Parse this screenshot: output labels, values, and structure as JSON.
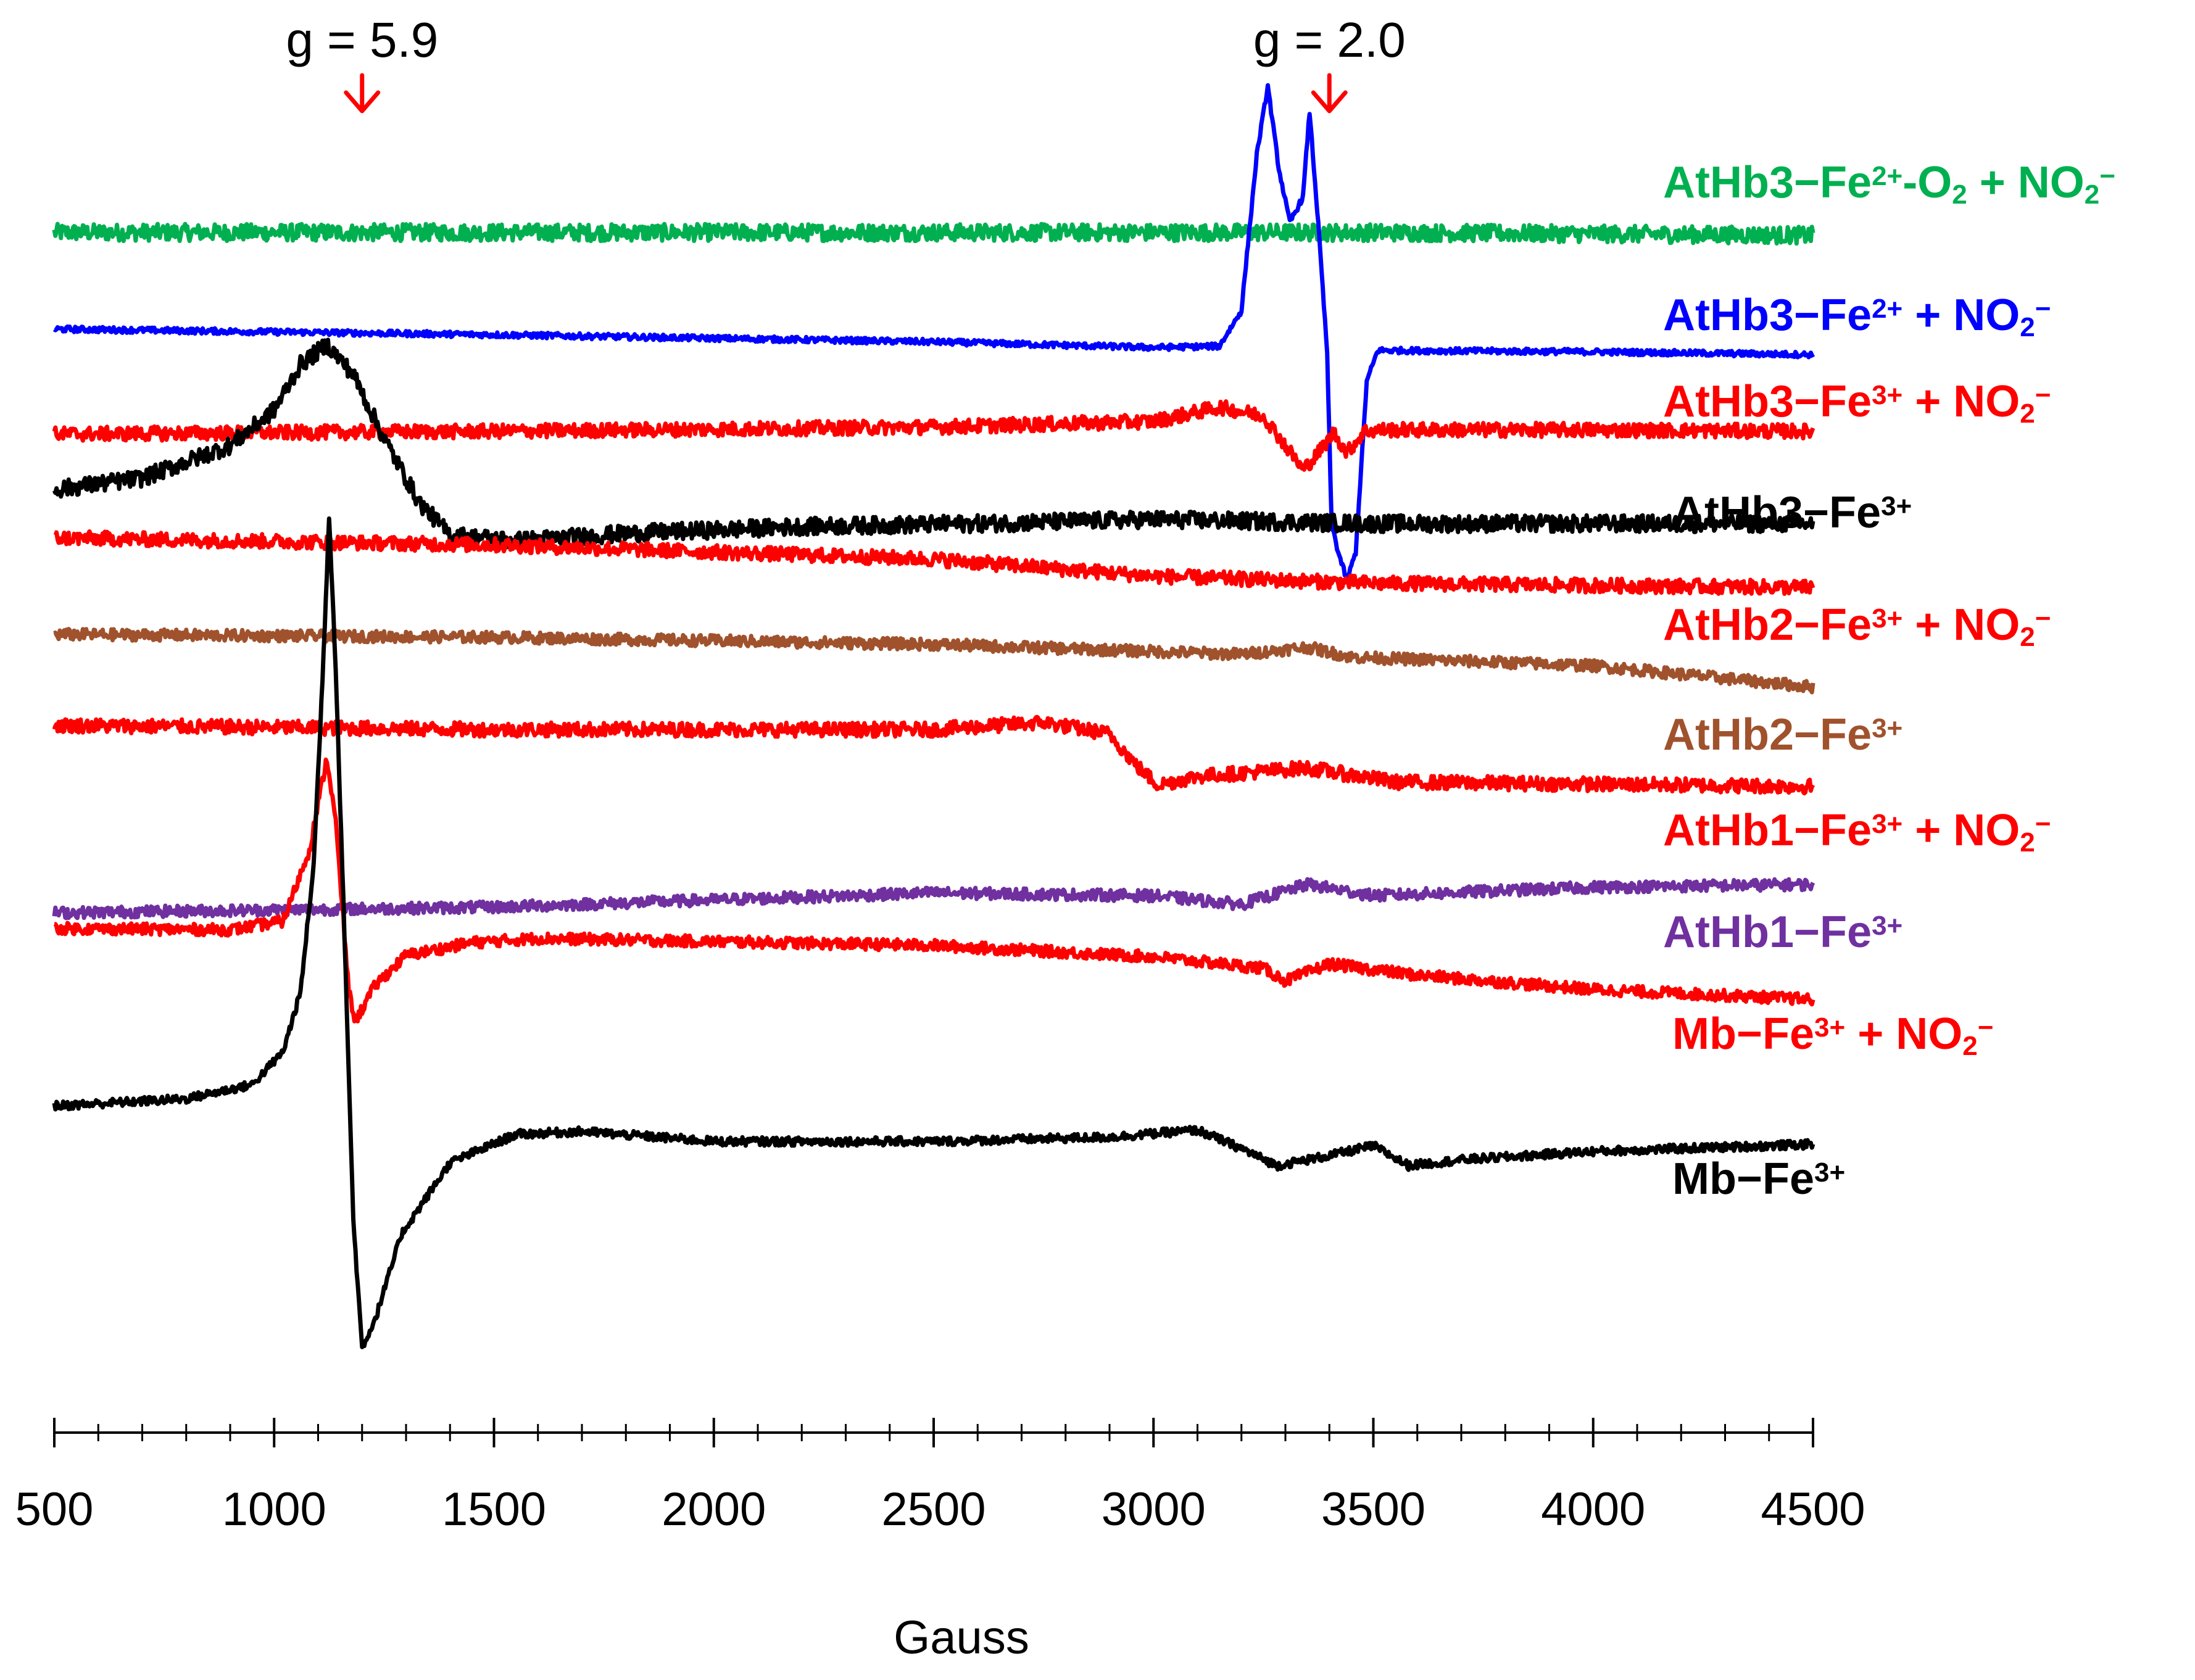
{
  "chart_data": {
    "type": "line",
    "title": "",
    "xlabel": "Gauss",
    "ylabel": "",
    "xlim": [
      500,
      4500
    ],
    "x_ticks": [
      "500",
      "1000",
      "1500",
      "2000",
      "2500",
      "3000",
      "3500",
      "4000",
      "4500"
    ],
    "x_tick_values": [
      500,
      1000,
      1500,
      2000,
      2500,
      3000,
      3500,
      4000,
      4500
    ],
    "grid": false,
    "annotations": [
      {
        "id": "g59",
        "text": "g = 5.9",
        "x": 1200,
        "arrow_color": "#ff0000"
      },
      {
        "id": "g20",
        "text": "g = 2.0",
        "x": 3400,
        "arrow_color": "#ff0000"
      }
    ],
    "series": [
      {
        "id": "s1",
        "name": "AtHb3−Fe²⁺-O₂ + NO₂⁻",
        "label_parts": [
          [
            "AtHb3−Fe",
            "n"
          ],
          [
            "2+",
            "sup"
          ],
          [
            "-O",
            "n"
          ],
          [
            "2",
            "sub"
          ],
          [
            " + NO",
            "n"
          ],
          [
            "2",
            "sub"
          ],
          [
            "−",
            "sup"
          ]
        ],
        "color": "#00b050",
        "noise": 0.006,
        "points": [
          [
            500,
            0.845
          ],
          [
            1500,
            0.845
          ],
          [
            2500,
            0.845
          ],
          [
            3500,
            0.845
          ],
          [
            4500,
            0.843
          ]
        ]
      },
      {
        "id": "s2",
        "name": "AtHb3−Fe²⁺ + NO₂⁻",
        "label_parts": [
          [
            "AtHb3−Fe",
            "n"
          ],
          [
            "2+",
            "sup"
          ],
          [
            " + NO",
            "n"
          ],
          [
            "2",
            "sub"
          ],
          [
            "−",
            "sup"
          ]
        ],
        "color": "#0000ff",
        "noise": 0.002,
        "points": [
          [
            500,
            0.777
          ],
          [
            1500,
            0.773
          ],
          [
            2500,
            0.768
          ],
          [
            3000,
            0.764
          ],
          [
            3150,
            0.765
          ],
          [
            3200,
            0.79
          ],
          [
            3235,
            0.9
          ],
          [
            3260,
            0.948
          ],
          [
            3285,
            0.89
          ],
          [
            3310,
            0.852
          ],
          [
            3340,
            0.87
          ],
          [
            3355,
            0.93
          ],
          [
            3375,
            0.85
          ],
          [
            3395,
            0.76
          ],
          [
            3405,
            0.64
          ],
          [
            3420,
            0.62
          ],
          [
            3440,
            0.6
          ],
          [
            3460,
            0.62
          ],
          [
            3485,
            0.74
          ],
          [
            3510,
            0.762
          ],
          [
            4000,
            0.761
          ],
          [
            4500,
            0.759
          ]
        ]
      },
      {
        "id": "s3",
        "name": "AtHb3−Fe³⁺ + NO₂⁻",
        "label_parts": [
          [
            "AtHb3−Fe",
            "n"
          ],
          [
            "3+",
            "sup"
          ],
          [
            " + NO",
            "n"
          ],
          [
            "2",
            "sub"
          ],
          [
            "−",
            "sup"
          ]
        ],
        "color": "#ff0000",
        "noise": 0.005,
        "points": [
          [
            500,
            0.703
          ],
          [
            1500,
            0.705
          ],
          [
            2500,
            0.708
          ],
          [
            3000,
            0.712
          ],
          [
            3150,
            0.722
          ],
          [
            3250,
            0.716
          ],
          [
            3300,
            0.695
          ],
          [
            3340,
            0.678
          ],
          [
            3370,
            0.688
          ],
          [
            3410,
            0.704
          ],
          [
            3440,
            0.69
          ],
          [
            3480,
            0.705
          ],
          [
            3520,
            0.706
          ],
          [
            4000,
            0.706
          ],
          [
            4500,
            0.705
          ]
        ]
      },
      {
        "id": "s4",
        "name": "AtHb3−Fe³⁺",
        "label_parts": [
          [
            "AtHb3−Fe",
            "n"
          ],
          [
            "3+",
            "sup"
          ]
        ],
        "color": "#000000",
        "noise": 0.006,
        "points": [
          [
            500,
            0.664
          ],
          [
            700,
            0.672
          ],
          [
            900,
            0.695
          ],
          [
            1000,
            0.72
          ],
          [
            1060,
            0.752
          ],
          [
            1120,
            0.766
          ],
          [
            1180,
            0.745
          ],
          [
            1250,
            0.7
          ],
          [
            1330,
            0.655
          ],
          [
            1400,
            0.632
          ],
          [
            1550,
            0.628
          ],
          [
            1800,
            0.633
          ],
          [
            2200,
            0.638
          ],
          [
            2600,
            0.64
          ],
          [
            3000,
            0.643
          ],
          [
            3500,
            0.64
          ],
          [
            4000,
            0.64
          ],
          [
            4500,
            0.64
          ]
        ]
      },
      {
        "id": "s5",
        "name": "AtHb2−Fe³⁺ + NO₂⁻",
        "label_parts": [
          [
            "AtHb2−Fe",
            "n"
          ],
          [
            "3+",
            "sup"
          ],
          [
            " + NO",
            "n"
          ],
          [
            "2",
            "sub"
          ],
          [
            "−",
            "sup"
          ]
        ],
        "color": "#ff0000",
        "noise": 0.005,
        "points": [
          [
            500,
            0.63
          ],
          [
            1500,
            0.625
          ],
          [
            2500,
            0.615
          ],
          [
            3000,
            0.603
          ],
          [
            3500,
            0.598
          ],
          [
            4500,
            0.595
          ]
        ]
      },
      {
        "id": "s6",
        "name": "AtHb2−Fe³⁺",
        "label_parts": [
          [
            "AtHb2−Fe",
            "n"
          ],
          [
            "3+",
            "sup"
          ]
        ],
        "color": "#a0522d",
        "noise": 0.004,
        "points": [
          [
            500,
            0.562
          ],
          [
            1500,
            0.56
          ],
          [
            2500,
            0.555
          ],
          [
            3200,
            0.548
          ],
          [
            3350,
            0.553
          ],
          [
            3450,
            0.546
          ],
          [
            4000,
            0.54
          ],
          [
            4500,
            0.525
          ]
        ]
      },
      {
        "id": "s7",
        "name": "AtHb1−Fe³⁺ + NO₂⁻",
        "label_parts": [
          [
            "AtHb1−Fe",
            "n"
          ],
          [
            "3+",
            "sup"
          ],
          [
            " + NO",
            "n"
          ],
          [
            "2",
            "sub"
          ],
          [
            "−",
            "sup"
          ]
        ],
        "color": "#ff0000",
        "noise": 0.005,
        "points": [
          [
            500,
            0.498
          ],
          [
            1500,
            0.495
          ],
          [
            2500,
            0.495
          ],
          [
            2750,
            0.5
          ],
          [
            2900,
            0.492
          ],
          [
            2960,
            0.47
          ],
          [
            3010,
            0.456
          ],
          [
            3100,
            0.462
          ],
          [
            3350,
            0.468
          ],
          [
            3550,
            0.458
          ],
          [
            4500,
            0.455
          ]
        ]
      },
      {
        "id": "s8",
        "name": "AtHb1−Fe³⁺",
        "label_parts": [
          [
            "AtHb1−Fe",
            "n"
          ],
          [
            "3+",
            "sup"
          ]
        ],
        "color": "#7030a0",
        "noise": 0.004,
        "points": [
          [
            500,
            0.366
          ],
          [
            1500,
            0.37
          ],
          [
            2500,
            0.38
          ],
          [
            3000,
            0.378
          ],
          [
            3200,
            0.372
          ],
          [
            3350,
            0.386
          ],
          [
            3500,
            0.378
          ],
          [
            4000,
            0.384
          ],
          [
            4500,
            0.386
          ]
        ]
      },
      {
        "id": "s9",
        "name": "Mb−Fe³⁺ + NO₂⁻",
        "label_parts": [
          [
            "Mb−Fe",
            "n"
          ],
          [
            "3+",
            "sup"
          ],
          [
            " + NO",
            "n"
          ],
          [
            "2",
            "sub"
          ],
          [
            "−",
            "sup"
          ]
        ],
        "color": "#ff0000",
        "noise": 0.004,
        "points": [
          [
            500,
            0.355
          ],
          [
            900,
            0.354
          ],
          [
            1020,
            0.36
          ],
          [
            1080,
            0.41
          ],
          [
            1120,
            0.475
          ],
          [
            1140,
            0.43
          ],
          [
            1170,
            0.31
          ],
          [
            1185,
            0.29
          ],
          [
            1230,
            0.315
          ],
          [
            1300,
            0.336
          ],
          [
            1450,
            0.345
          ],
          [
            1600,
            0.348
          ],
          [
            2500,
            0.343
          ],
          [
            3000,
            0.335
          ],
          [
            3250,
            0.327
          ],
          [
            3300,
            0.318
          ],
          [
            3400,
            0.33
          ],
          [
            3600,
            0.322
          ],
          [
            4000,
            0.312
          ],
          [
            4500,
            0.305
          ]
        ]
      },
      {
        "id": "s10",
        "name": "Mb−Fe³⁺",
        "label_parts": [
          [
            "Mb−Fe",
            "n"
          ],
          [
            "3+",
            "sup"
          ]
        ],
        "color": "#000000",
        "noise": 0.003,
        "points": [
          [
            500,
            0.23
          ],
          [
            800,
            0.235
          ],
          [
            950,
            0.245
          ],
          [
            1020,
            0.268
          ],
          [
            1060,
            0.31
          ],
          [
            1090,
            0.4
          ],
          [
            1110,
            0.53
          ],
          [
            1125,
            0.645
          ],
          [
            1140,
            0.54
          ],
          [
            1160,
            0.35
          ],
          [
            1180,
            0.15
          ],
          [
            1200,
            0.06
          ],
          [
            1230,
            0.08
          ],
          [
            1290,
            0.14
          ],
          [
            1400,
            0.19
          ],
          [
            1550,
            0.21
          ],
          [
            1700,
            0.212
          ],
          [
            2000,
            0.205
          ],
          [
            2500,
            0.205
          ],
          [
            2900,
            0.208
          ],
          [
            3100,
            0.213
          ],
          [
            3200,
            0.2
          ],
          [
            3280,
            0.188
          ],
          [
            3400,
            0.195
          ],
          [
            3500,
            0.202
          ],
          [
            3580,
            0.188
          ],
          [
            3700,
            0.192
          ],
          [
            4000,
            0.198
          ],
          [
            4500,
            0.203
          ]
        ]
      }
    ]
  }
}
